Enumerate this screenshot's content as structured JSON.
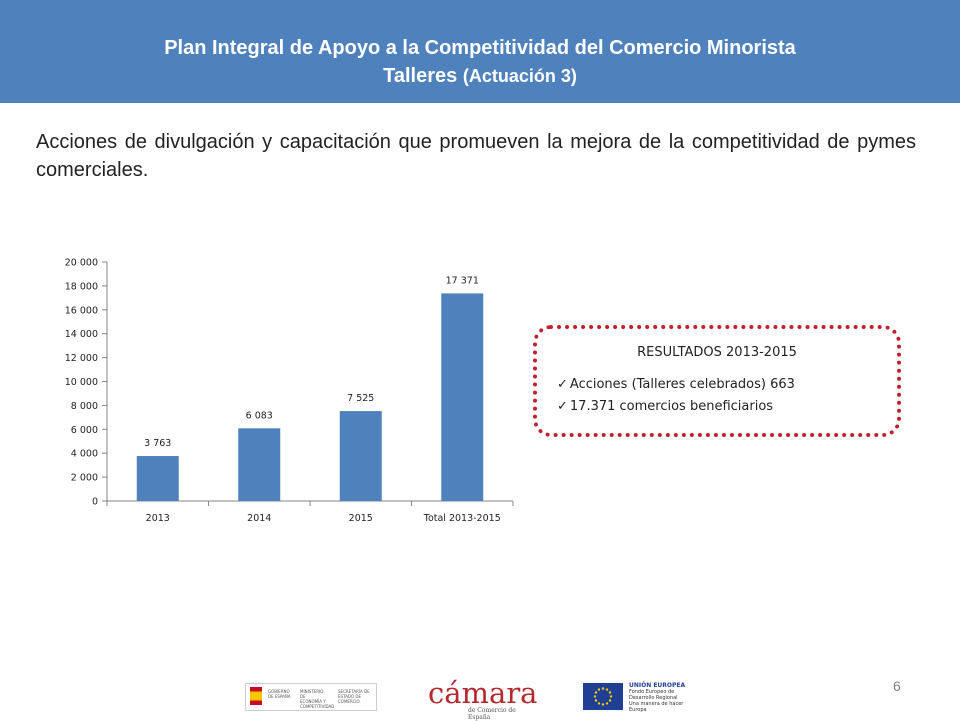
{
  "header": {
    "title_line1": "Plan Integral de Apoyo a la Competitividad del Comercio Minorista",
    "title_line2_main": "Talleres ",
    "title_line2_sub": "(Actuación 3)"
  },
  "intro": "Acciones de divulgación y capacitación que promueven la mejora de la competitividad de pymes comerciales.",
  "chart_data": {
    "type": "bar",
    "categories": [
      "2013",
      "2014",
      "2015",
      "Total 2013-2015"
    ],
    "values": [
      3763,
      6083,
      7525,
      17371
    ],
    "data_labels": [
      "3 763",
      "6 083",
      "7 525",
      "17 371"
    ],
    "ylim": [
      0,
      20000
    ],
    "y_ticks": [
      0,
      2000,
      4000,
      6000,
      8000,
      10000,
      12000,
      14000,
      16000,
      18000,
      20000
    ],
    "y_tick_labels": [
      "0",
      "2 000",
      "4 000",
      "6 000",
      "8 000",
      "10 000",
      "12 000",
      "14 000",
      "16 000",
      "18 000",
      "20 000"
    ],
    "title": "",
    "xlabel": "",
    "ylabel": "",
    "grid": false,
    "bar_color": "#4f81bd"
  },
  "results": {
    "title": "RESULTADOS 2013-2015",
    "check_glyph": "✓",
    "items": [
      "Acciones (Talleres celebrados) 663",
      "17.371 comercios beneficiarios"
    ]
  },
  "footer": {
    "page_number": "6",
    "logo_gobierno": {
      "col1": "GOBIERNO DE ESPAÑA",
      "col2": "MINISTERIO DE ECONOMÍA Y COMPETITIVIDAD",
      "col3": "SECRETARÍA DE ESTADO DE COMERCIO"
    },
    "logo_camara": {
      "word": "cámara",
      "sub": "de Comercio de España"
    },
    "logo_eu": {
      "line1": "UNIÓN EUROPEA",
      "line2": "Fondo Europeo de Desarrollo Regional",
      "line3": "Una manera de hacer Europa"
    }
  },
  "colors": {
    "header_bg": "#4f81bd",
    "bar": "#4f81bd",
    "results_border": "#c0202a"
  }
}
